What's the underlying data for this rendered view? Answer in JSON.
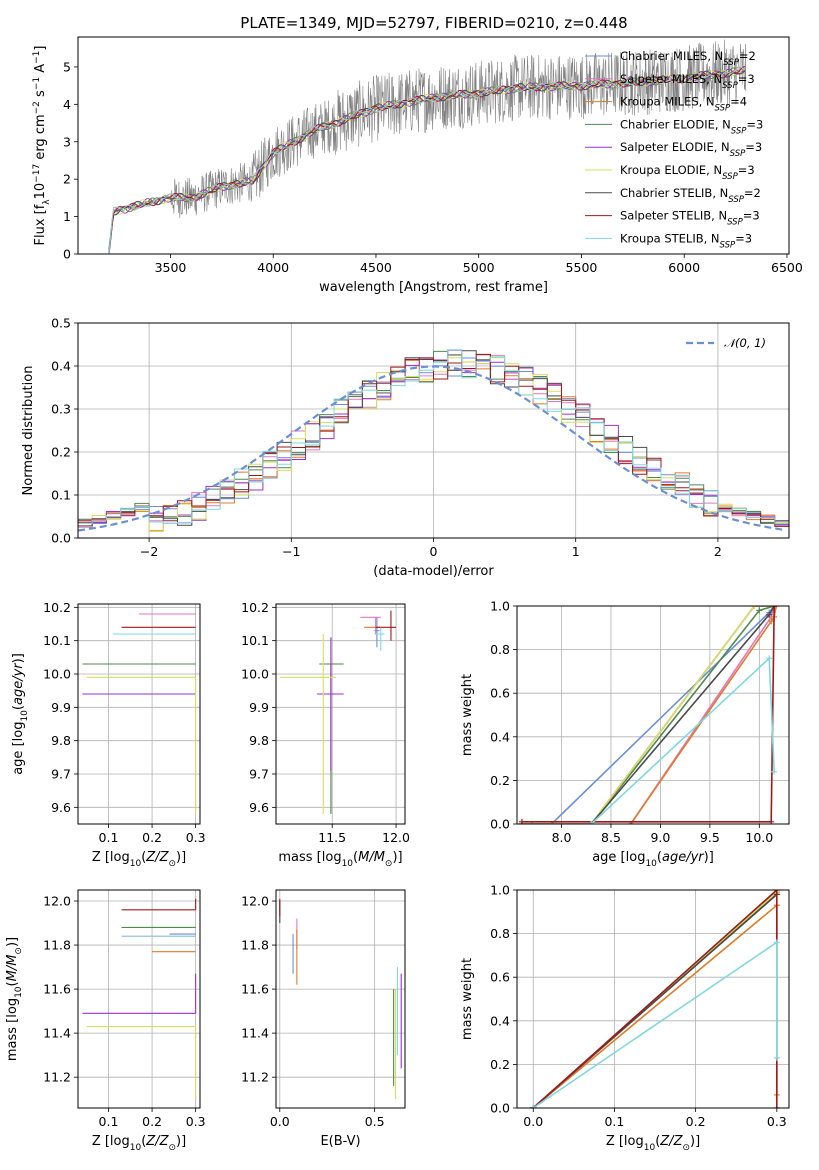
{
  "figure": {
    "title": "PLATE=1349, MJD=52797, FIBERID=0210, z=0.448"
  },
  "models": [
    {
      "name": "Chabrier MILES, N$_{SSP}$=2",
      "label": "Chabrier MILES, N",
      "sub": "SSP",
      "val": "=2",
      "color": "#6a8fd6"
    },
    {
      "name": "Salpeter MILES, N$_{SSP}$=3",
      "label": "Salpeter MILES, N",
      "sub": "SSP",
      "val": "=3",
      "color": "#e377c2"
    },
    {
      "name": "Kroupa MILES, N$_{SSP}$=4",
      "label": "Kroupa MILES, N",
      "sub": "SSP",
      "val": "=4",
      "color": "#e07b2a"
    },
    {
      "name": "Chabrier ELODIE, N$_{SSP}$=3",
      "label": "Chabrier ELODIE, N",
      "sub": "SSP",
      "val": "=3",
      "color": "#4f8a4f"
    },
    {
      "name": "Salpeter ELODIE, N$_{SSP}$=3",
      "label": "Salpeter ELODIE, N",
      "sub": "SSP",
      "val": "=3",
      "color": "#9b30c8"
    },
    {
      "name": "Kroupa ELODIE, N$_{SSP}$=3",
      "label": "Kroupa ELODIE, N",
      "sub": "SSP",
      "val": "=3",
      "color": "#d6e05a"
    },
    {
      "name": "Chabrier STELIB, N$_{SSP}$=2",
      "label": "Chabrier STELIB, N",
      "sub": "SSP",
      "val": "=2",
      "color": "#4a4a4a"
    },
    {
      "name": "Salpeter STELIB, N$_{SSP}$=3",
      "label": "Salpeter STELIB, N",
      "sub": "SSP",
      "val": "=3",
      "color": "#a01818"
    },
    {
      "name": "Kroupa STELIB, N$_{SSP}$=3",
      "label": "Kroupa STELIB, N",
      "sub": "SSP",
      "val": "=3",
      "color": "#7fd8e0"
    }
  ],
  "chart_data": [
    {
      "id": "spectrum",
      "type": "line",
      "xlabel": "wavelength [Angstrom, rest frame]",
      "ylabel": "Flux [f$_\\lambda$10$^{-17}$ erg cm$^{-2}$ s$^{-1}$ A$^{-1}$]",
      "ylabel_parts": [
        "Flux [f",
        "λ",
        "10",
        "−17",
        " erg cm",
        "−2",
        " s",
        "−1",
        " A",
        "−1",
        "]"
      ],
      "xlim": [
        3050,
        6510
      ],
      "ylim": [
        0,
        5.8
      ],
      "xticks": [
        3500,
        4000,
        4500,
        5000,
        5500,
        6000,
        6500
      ],
      "yticks": [
        0,
        1,
        2,
        3,
        4,
        5
      ],
      "data_series": {
        "name": "data",
        "color": "#808080",
        "x_range": [
          3200,
          6300
        ],
        "continuum": [
          [
            3200,
            1.1
          ],
          [
            3450,
            1.45
          ],
          [
            3500,
            1.5
          ],
          [
            3600,
            1.5
          ],
          [
            3750,
            1.8
          ],
          [
            3900,
            1.95
          ],
          [
            4000,
            2.7
          ],
          [
            4200,
            3.3
          ],
          [
            4500,
            3.9
          ],
          [
            4800,
            4.2
          ],
          [
            5000,
            4.3
          ],
          [
            5200,
            4.45
          ],
          [
            5500,
            4.5
          ],
          [
            5800,
            4.6
          ],
          [
            6000,
            4.7
          ],
          [
            6300,
            4.9
          ]
        ]
      },
      "legend": "top-right"
    },
    {
      "id": "residuals",
      "type": "histogram",
      "xlabel": "(data-model)/error",
      "ylabel": "Normed distribution",
      "xlim": [
        -2.5,
        2.5
      ],
      "ylim": [
        0,
        0.5
      ],
      "xticks": [
        -2,
        -1,
        0,
        1,
        2
      ],
      "yticks": [
        0.0,
        0.1,
        0.2,
        0.3,
        0.4,
        0.5
      ],
      "bin_width": 0.1,
      "gaussian": {
        "label": "𝒩(0, 1)",
        "mu": 0,
        "sigma": 1,
        "color": "#6a8fd6"
      },
      "legend": "top-right"
    },
    {
      "id": "z_age",
      "type": "errorbar",
      "xlabel": "Z [log$_{10}$(Z/Z$_\\odot$)]",
      "ylabel": "age  [log$_{10}$(age/yr)]",
      "xlim": [
        0.03,
        0.31
      ],
      "ylim": [
        9.55,
        10.21
      ],
      "xticks": [
        0.1,
        0.2,
        0.3
      ],
      "yticks": [
        9.6,
        9.7,
        9.8,
        9.9,
        10.0,
        10.1,
        10.2
      ],
      "points": [
        {
          "model": 0,
          "x": 0.3,
          "y": 10.18,
          "xerr": [
            0.04,
            0.0
          ]
        },
        {
          "model": 1,
          "x": 0.3,
          "y": 10.18,
          "xerr": [
            0.13,
            0.0
          ]
        },
        {
          "model": 2,
          "x": 0.3,
          "y": 10.14,
          "xerr": [
            0.0,
            0.0
          ]
        },
        {
          "model": 3,
          "x": 0.3,
          "y": 10.03,
          "xerr": [
            0.26,
            0.0
          ]
        },
        {
          "model": 4,
          "x": 0.3,
          "y": 9.94,
          "xerr": [
            0.26,
            0.0
          ]
        },
        {
          "model": 5,
          "x": 0.3,
          "y": 9.99,
          "xerr": [
            0.25,
            0.0
          ],
          "yerr": [
            0.41,
            0.0
          ]
        },
        {
          "model": 7,
          "x": 0.3,
          "y": 10.14,
          "xerr": [
            0.17,
            0.0
          ]
        },
        {
          "model": 8,
          "x": 0.3,
          "y": 10.12,
          "xerr": [
            0.19,
            0.0
          ]
        }
      ]
    },
    {
      "id": "mass_age",
      "type": "errorbar",
      "xlabel": "mass [log$_{10}$(M/M$_\\odot$)]",
      "ylabel": "",
      "xlim": [
        11.06,
        12.07
      ],
      "ylim": [
        9.55,
        10.21
      ],
      "xticks": [
        11.5,
        12.0
      ],
      "yticks": [
        9.6,
        9.7,
        9.8,
        9.9,
        10.0,
        10.1,
        10.2
      ],
      "points": [
        {
          "model": 0,
          "x": 11.85,
          "y": 10.13,
          "xerr": [
            0.02,
            0.02
          ],
          "yerr": [
            0.05,
            0.04
          ]
        },
        {
          "model": 1,
          "x": 11.84,
          "y": 10.17,
          "xerr": [
            0.12,
            0.04
          ],
          "yerr": [
            0.05,
            0.0
          ]
        },
        {
          "model": 2,
          "x": 11.85,
          "y": 10.14,
          "xerr": [
            0.1,
            0.04
          ],
          "yerr": [
            0.0,
            0.0
          ]
        },
        {
          "model": 3,
          "x": 11.49,
          "y": 10.03,
          "xerr": [
            0.09,
            0.1
          ],
          "yerr": [
            0.45,
            0.0
          ]
        },
        {
          "model": 4,
          "x": 11.49,
          "y": 9.94,
          "xerr": [
            0.11,
            0.1
          ],
          "yerr": [
            0.23,
            0.17
          ]
        },
        {
          "model": 5,
          "x": 11.43,
          "y": 9.99,
          "xerr": [
            0.34,
            0.1
          ],
          "yerr": [
            0.41,
            0.13
          ]
        },
        {
          "model": 7,
          "x": 11.96,
          "y": 10.14,
          "xerr": [
            0.12,
            0.04
          ],
          "yerr": [
            0.04,
            0.05
          ]
        },
        {
          "model": 8,
          "x": 11.88,
          "y": 10.12,
          "xerr": [
            0.05,
            0.03
          ],
          "yerr": [
            0.05,
            0.02
          ]
        }
      ]
    },
    {
      "id": "age_mw",
      "type": "line",
      "xlabel": "age  [log$_{10}$(age/yr)]",
      "ylabel": "mass weight",
      "xlim": [
        7.55,
        10.3
      ],
      "ylim": [
        0,
        1.0
      ],
      "xticks": [
        8.0,
        8.5,
        9.0,
        9.5,
        10.0
      ],
      "yticks": [
        0.0,
        0.2,
        0.4,
        0.6,
        0.8,
        1.0
      ],
      "series": [
        {
          "model": 0,
          "x": [
            7.7,
            7.9,
            10.1,
            10.15
          ],
          "y": [
            0.0,
            0.0,
            0.97,
            1.0
          ]
        },
        {
          "model": 1,
          "x": [
            8.7,
            10.12,
            10.15
          ],
          "y": [
            0.0,
            0.95,
            1.0
          ]
        },
        {
          "model": 2,
          "x": [
            8.7,
            10.12,
            10.15,
            10.17
          ],
          "y": [
            0.0,
            0.93,
            0.95,
            1.0
          ]
        },
        {
          "model": 3,
          "x": [
            7.6,
            8.3,
            10.0,
            10.15
          ],
          "y": [
            0.0,
            0.0,
            0.98,
            1.0
          ]
        },
        {
          "model": 4,
          "x": [
            7.6,
            8.3,
            9.95,
            10.15
          ],
          "y": [
            0.0,
            0.0,
            1.0,
            1.0
          ]
        },
        {
          "model": 5,
          "x": [
            7.6,
            8.3,
            9.95,
            10.15
          ],
          "y": [
            0.0,
            0.0,
            1.0,
            1.0
          ]
        },
        {
          "model": 6,
          "x": [
            8.3,
            10.1,
            10.15
          ],
          "y": [
            0.0,
            0.96,
            1.0
          ]
        },
        {
          "model": 7,
          "x": [
            7.6,
            10.12,
            10.15
          ],
          "y": [
            0.01,
            0.01,
            1.0
          ]
        },
        {
          "model": 8,
          "x": [
            8.3,
            10.1,
            10.15
          ],
          "y": [
            0.0,
            0.76,
            0.24
          ]
        }
      ]
    },
    {
      "id": "z_mass",
      "type": "errorbar",
      "xlabel": "Z [log$_{10}$(Z/Z$_\\odot$)]",
      "ylabel": "mass [log$_{10}$(M/M$_\\odot$)]",
      "xlim": [
        0.03,
        0.31
      ],
      "ylim": [
        11.06,
        12.05
      ],
      "xticks": [
        0.1,
        0.2,
        0.3
      ],
      "yticks": [
        11.2,
        11.4,
        11.6,
        11.8,
        12.0
      ],
      "points": [
        {
          "model": 0,
          "x": 0.3,
          "y": 11.85,
          "xerr": [
            0.06,
            0.0
          ]
        },
        {
          "model": 1,
          "x": 0.3,
          "y": 11.84,
          "xerr": [
            0.17,
            0.0
          ]
        },
        {
          "model": 2,
          "x": 0.3,
          "y": 11.77,
          "xerr": [
            0.1,
            0.0
          ]
        },
        {
          "model": 3,
          "x": 0.3,
          "y": 11.88,
          "xerr": [
            0.17,
            0.0
          ]
        },
        {
          "model": 4,
          "x": 0.3,
          "y": 11.49,
          "xerr": [
            0.26,
            0.0
          ],
          "yerr": [
            0.0,
            0.18
          ]
        },
        {
          "model": 5,
          "x": 0.3,
          "y": 11.43,
          "xerr": [
            0.25,
            0.0
          ],
          "yerr": [
            0.33,
            0.0
          ]
        },
        {
          "model": 7,
          "x": 0.3,
          "y": 11.96,
          "xerr": [
            0.17,
            0.0
          ],
          "yerr": [
            0.0,
            0.05
          ]
        },
        {
          "model": 8,
          "x": 0.3,
          "y": 11.84,
          "xerr": [
            0.17,
            0.0
          ]
        }
      ]
    },
    {
      "id": "ebv_mass",
      "type": "errorbar",
      "xlabel": "E(B-V)",
      "ylabel": "",
      "xlim": [
        -0.02,
        0.66
      ],
      "ylim": [
        11.06,
        12.05
      ],
      "xticks": [
        0.0,
        0.5
      ],
      "yticks": [
        11.2,
        11.4,
        11.6,
        11.8,
        12.0
      ],
      "points": [
        {
          "model": 0,
          "x": 0.07,
          "y": 11.76,
          "xerr": [
            0,
            0
          ],
          "yerr": [
            0.09,
            0.09
          ]
        },
        {
          "model": 1,
          "x": 0.09,
          "y": 11.84,
          "xerr": [
            0,
            0
          ],
          "yerr": [
            0.06,
            0.08
          ]
        },
        {
          "model": 2,
          "x": 0.09,
          "y": 11.77,
          "xerr": [
            0,
            0
          ],
          "yerr": [
            0.15,
            0.1
          ]
        },
        {
          "model": 3,
          "x": 0.6,
          "y": 11.4,
          "xerr": [
            0,
            0
          ],
          "yerr": [
            0.24,
            0.2
          ]
        },
        {
          "model": 4,
          "x": 0.64,
          "y": 11.49,
          "xerr": [
            0,
            0
          ],
          "yerr": [
            0.25,
            0.18
          ]
        },
        {
          "model": 5,
          "x": 0.61,
          "y": 11.35,
          "xerr": [
            0,
            0
          ],
          "yerr": [
            0.25,
            0.25
          ]
        },
        {
          "model": 6,
          "x": 0.0,
          "y": 11.95,
          "xerr": [
            0,
            0
          ],
          "yerr": [
            0.05,
            0.05
          ]
        },
        {
          "model": 7,
          "x": 0.0,
          "y": 11.97,
          "xerr": [
            0,
            0
          ],
          "yerr": [
            0.04,
            0.04
          ]
        },
        {
          "model": 8,
          "x": 0.62,
          "y": 11.5,
          "xerr": [
            0,
            0
          ],
          "yerr": [
            0.2,
            0.2
          ]
        }
      ]
    },
    {
      "id": "z_mw",
      "type": "line",
      "xlabel": "Z [log$_{10}$(Z/Z$_\\odot$)]",
      "ylabel": "mass weight",
      "xlim": [
        -0.02,
        0.315
      ],
      "ylim": [
        0,
        1.0
      ],
      "xticks": [
        0.0,
        0.1,
        0.2,
        0.3
      ],
      "yticks": [
        0.0,
        0.2,
        0.4,
        0.6,
        0.8,
        1.0
      ],
      "series": [
        {
          "model": 0,
          "x": [
            0.0,
            0.3
          ],
          "y": [
            0.0,
            0.99
          ]
        },
        {
          "model": 1,
          "x": [
            0.0,
            0.3
          ],
          "y": [
            0.0,
            0.99
          ]
        },
        {
          "model": 2,
          "x": [
            0.0,
            0.3,
            0.3
          ],
          "y": [
            0.0,
            0.93,
            0.06
          ]
        },
        {
          "model": 3,
          "x": [
            0.0,
            0.3
          ],
          "y": [
            0.0,
            0.98
          ]
        },
        {
          "model": 4,
          "x": [
            0.0,
            0.3
          ],
          "y": [
            0.0,
            0.99
          ]
        },
        {
          "model": 5,
          "x": [
            0.0,
            0.3
          ],
          "y": [
            0.0,
            0.99
          ]
        },
        {
          "model": 6,
          "x": [
            0.0,
            0.3
          ],
          "y": [
            0.0,
            0.98
          ]
        },
        {
          "model": 7,
          "x": [
            0.0,
            0.3,
            0.3
          ],
          "y": [
            0.0,
            1.0,
            0.0
          ]
        },
        {
          "model": 8,
          "x": [
            0.0,
            0.3,
            0.3
          ],
          "y": [
            0.0,
            0.76,
            0.23
          ]
        }
      ]
    }
  ]
}
